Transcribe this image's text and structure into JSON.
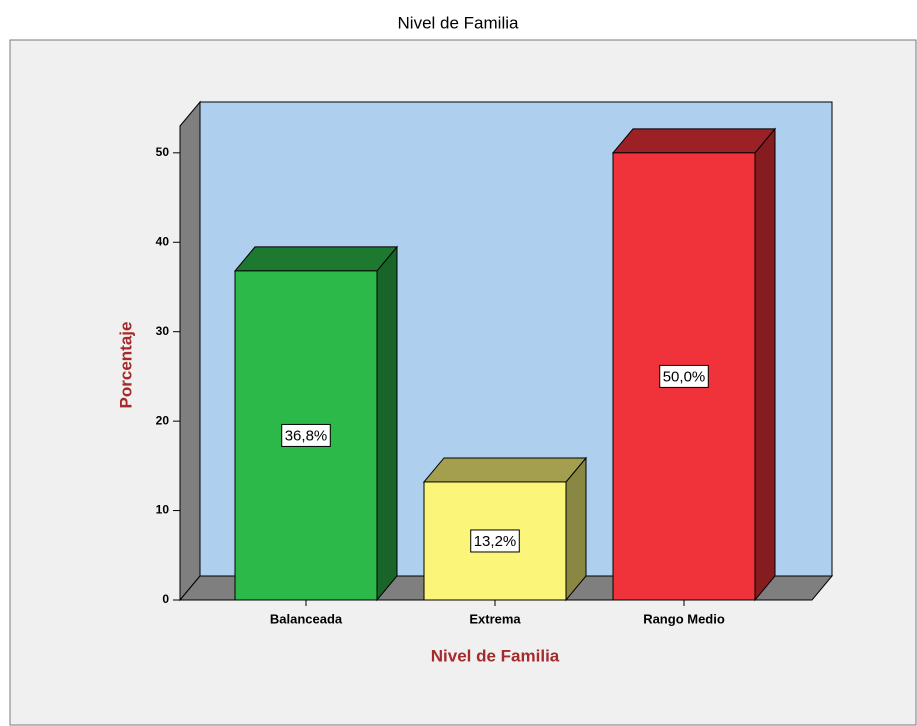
{
  "chart_data": {
    "type": "bar3d",
    "title": "Nivel de Familia",
    "x_label": "Nivel de Familia",
    "y_label": "Porcentaje",
    "categories": [
      "Balanceada",
      "Extrema",
      "Rango Medio"
    ],
    "values": [
      36.8,
      13.2,
      50.0
    ],
    "value_labels": [
      "36,8%",
      "13,2%",
      "50,0%"
    ],
    "colors": [
      "#2db84a",
      "#fbf57a",
      "#f0323a"
    ],
    "ylim": [
      0,
      53
    ],
    "yticks": [
      0,
      10,
      20,
      30,
      40,
      50
    ]
  }
}
